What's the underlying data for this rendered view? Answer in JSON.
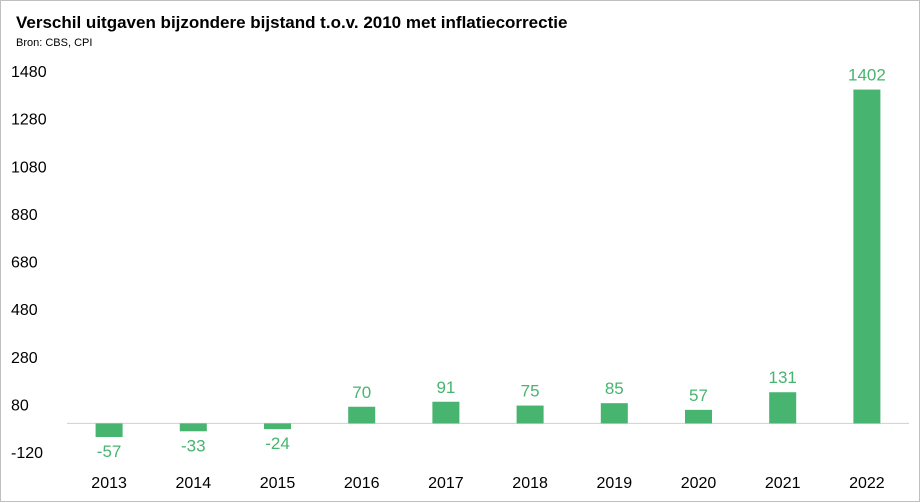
{
  "chart_data": {
    "type": "bar",
    "title": "Verschil uitgaven bijzondere bijstand t.o.v. 2010 met inflatiecorrectie",
    "subtitle": "Bron: CBS, CPI",
    "categories": [
      "2013",
      "2014",
      "2015",
      "2016",
      "2017",
      "2018",
      "2019",
      "2020",
      "2021",
      "2022"
    ],
    "values": [
      -57,
      -33,
      -24,
      70,
      91,
      75,
      85,
      57,
      131,
      1402
    ],
    "yticks": [
      -120,
      80,
      280,
      480,
      680,
      880,
      1080,
      1280,
      1480
    ],
    "ylim": [
      -120,
      1480
    ],
    "xlabel": "",
    "ylabel": "",
    "grid": false,
    "legend": "none",
    "bar_color": "#47b46f",
    "label_color": "#47b46f"
  }
}
